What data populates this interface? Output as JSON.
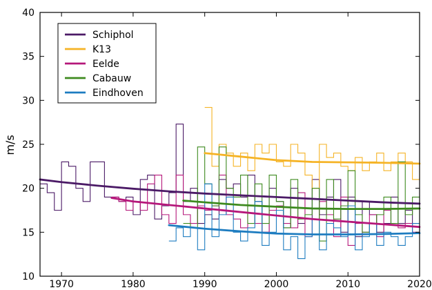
{
  "chart_data": {
    "type": "line",
    "title": "",
    "xlabel": "",
    "ylabel": "m/s",
    "xlim": [
      1967,
      2020
    ],
    "ylim": [
      10,
      40
    ],
    "xticks": [
      1970,
      1980,
      1990,
      2000,
      2010,
      2020
    ],
    "yticks": [
      10,
      15,
      20,
      25,
      30,
      35,
      40
    ],
    "grid": false,
    "legend_position": "top-left",
    "series": [
      {
        "name": "Schiphol",
        "color": "#4b1a66",
        "step_x": [
          1967,
          1968,
          1969,
          1970,
          1971,
          1972,
          1973,
          1974,
          1975,
          1976,
          1977,
          1978,
          1979,
          1980,
          1981,
          1982,
          1983,
          1984,
          1985,
          1986,
          1987,
          1988,
          1989,
          1990,
          1991,
          1992,
          1993,
          1994,
          1995,
          1996,
          1997,
          1998,
          1999,
          2000,
          2001,
          2002,
          2003,
          2004,
          2005,
          2006,
          2007,
          2008,
          2009,
          2010,
          2011,
          2012,
          2013,
          2014,
          2015,
          2016,
          2017,
          2018,
          2019,
          2020
        ],
        "step_y": [
          20.5,
          19.5,
          17.5,
          23.0,
          22.5,
          20.0,
          18.5,
          23.0,
          23.0,
          19.0,
          19.0,
          18.5,
          19.0,
          17.0,
          21.0,
          21.5,
          16.5,
          18.0,
          19.5,
          27.3,
          18.5,
          20.0,
          16.0,
          17.0,
          16.5,
          21.0,
          20.0,
          20.5,
          19.0,
          21.5,
          18.5,
          15.0,
          20.0,
          18.5,
          15.5,
          20.0,
          16.0,
          16.5,
          21.0,
          17.0,
          19.0,
          21.0,
          15.0,
          19.0,
          14.5,
          18.5,
          17.0,
          15.0,
          16.0,
          19.0,
          16.0,
          17.5,
          16.0,
          16.0
        ],
        "trend_x": [
          1967,
          1970,
          1975,
          1980,
          1985,
          1990,
          1995,
          2000,
          2005,
          2010,
          2015,
          2020
        ],
        "trend_y": [
          21.0,
          20.7,
          20.3,
          19.95,
          19.65,
          19.4,
          19.2,
          19.0,
          18.8,
          18.6,
          18.4,
          18.25
        ]
      },
      {
        "name": "K13",
        "color": "#f5b325",
        "step_x": [
          1990,
          1991,
          1992,
          1993,
          1994,
          1995,
          1996,
          1997,
          1998,
          1999,
          2000,
          2001,
          2002,
          2003,
          2004,
          2005,
          2006,
          2007,
          2008,
          2009,
          2010,
          2011,
          2012,
          2013,
          2014,
          2015,
          2016,
          2017,
          2018,
          2019,
          2020
        ],
        "step_y": [
          29.2,
          22.5,
          25.0,
          24.0,
          22.5,
          24.0,
          22.0,
          25.0,
          24.0,
          25.0,
          23.0,
          22.5,
          25.0,
          24.0,
          21.5,
          20.0,
          25.0,
          23.5,
          24.0,
          22.5,
          22.0,
          23.5,
          22.0,
          23.0,
          24.0,
          22.0,
          23.0,
          24.0,
          23.0,
          21.0,
          23.0
        ],
        "trend_x": [
          1990,
          1995,
          2000,
          2005,
          2010,
          2015,
          2020
        ],
        "trend_y": [
          24.0,
          23.6,
          23.2,
          23.0,
          22.95,
          22.9,
          22.8
        ]
      },
      {
        "name": "Eelde",
        "color": "#b5177a",
        "step_x": [
          1977,
          1978,
          1979,
          1980,
          1981,
          1982,
          1983,
          1984,
          1985,
          1986,
          1987,
          1988,
          1989,
          1990,
          1991,
          1992,
          1993,
          1994,
          1995,
          1996,
          1997,
          1998,
          1999,
          2000,
          2001,
          2002,
          2003,
          2004,
          2005,
          2006,
          2007,
          2008,
          2009,
          2010,
          2011,
          2012,
          2013,
          2014,
          2015,
          2016,
          2017,
          2018,
          2019,
          2020
        ],
        "step_y": [
          19.0,
          18.5,
          17.5,
          18.5,
          17.5,
          20.5,
          21.5,
          17.0,
          16.0,
          21.5,
          17.0,
          16.0,
          18.0,
          17.5,
          18.0,
          21.5,
          17.0,
          16.5,
          15.5,
          18.0,
          16.0,
          15.0,
          17.5,
          18.0,
          16.0,
          15.5,
          19.5,
          14.5,
          16.5,
          18.5,
          17.0,
          14.5,
          19.0,
          13.5,
          16.0,
          15.0,
          17.0,
          14.5,
          17.5,
          16.0,
          15.5,
          16.0,
          15.0,
          15.0
        ],
        "trend_x": [
          1977,
          1980,
          1985,
          1990,
          1995,
          2000,
          2005,
          2010,
          2015,
          2020
        ],
        "trend_y": [
          18.9,
          18.5,
          18.1,
          17.7,
          17.3,
          16.9,
          16.5,
          16.2,
          15.9,
          15.6
        ]
      },
      {
        "name": "Cabauw",
        "color": "#3d8a1e",
        "step_x": [
          1987,
          1988,
          1989,
          1990,
          1991,
          1992,
          1993,
          1994,
          1995,
          1996,
          1997,
          1998,
          1999,
          2000,
          2001,
          2002,
          2003,
          2004,
          2005,
          2006,
          2007,
          2008,
          2009,
          2010,
          2011,
          2012,
          2013,
          2014,
          2015,
          2016,
          2017,
          2018,
          2019,
          2020
        ],
        "step_y": [
          16.0,
          15.5,
          24.7,
          20.5,
          18.0,
          24.7,
          20.0,
          19.0,
          21.5,
          16.0,
          20.5,
          16.0,
          21.5,
          18.5,
          15.5,
          21.0,
          16.5,
          17.0,
          20.0,
          14.0,
          21.0,
          16.5,
          18.0,
          22.0,
          17.0,
          15.0,
          16.0,
          17.0,
          19.0,
          16.0,
          23.0,
          17.0,
          19.0,
          19.0
        ],
        "trend_x": [
          1987,
          1990,
          1995,
          2000,
          2005,
          2010,
          2015,
          2020
        ],
        "trend_y": [
          18.6,
          18.4,
          18.1,
          17.9,
          17.7,
          17.65,
          17.65,
          17.7
        ]
      },
      {
        "name": "Eindhoven",
        "color": "#1d7cc0",
        "step_x": [
          1985,
          1986,
          1987,
          1988,
          1989,
          1990,
          1991,
          1992,
          1993,
          1994,
          1995,
          1996,
          1997,
          1998,
          1999,
          2000,
          2001,
          2002,
          2003,
          2004,
          2005,
          2006,
          2007,
          2008,
          2009,
          2010,
          2011,
          2012,
          2013,
          2014,
          2015,
          2016,
          2017,
          2018,
          2019,
          2020
        ],
        "step_y": [
          14.0,
          15.5,
          14.5,
          15.5,
          13.0,
          20.5,
          14.5,
          17.0,
          19.0,
          15.0,
          14.0,
          15.5,
          18.5,
          13.5,
          15.0,
          17.5,
          13.0,
          14.5,
          12.0,
          14.5,
          16.5,
          13.0,
          16.0,
          15.5,
          14.5,
          18.0,
          13.0,
          14.5,
          16.0,
          13.5,
          15.0,
          14.5,
          13.5,
          14.5,
          16.0,
          16.0
        ],
        "trend_x": [
          1985,
          1990,
          1995,
          2000,
          2005,
          2010,
          2015,
          2020
        ],
        "trend_y": [
          15.8,
          15.4,
          15.1,
          14.85,
          14.75,
          14.75,
          14.8,
          14.9
        ]
      }
    ]
  }
}
